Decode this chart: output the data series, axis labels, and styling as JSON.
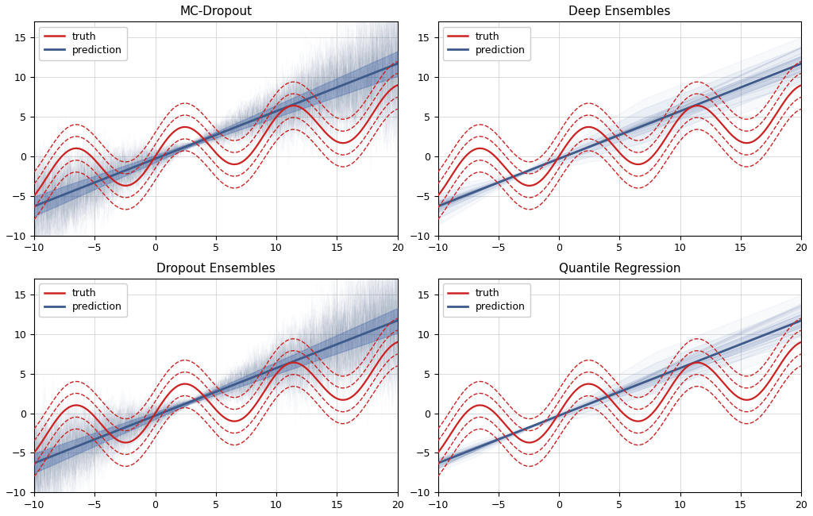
{
  "titles": [
    "MC-Dropout",
    "Deep Ensembles",
    "Dropout Ensembles",
    "Quantile Regression"
  ],
  "xlim": [
    -10,
    20
  ],
  "ylim": [
    -10,
    17
  ],
  "yticks": [
    -10,
    -5,
    0,
    5,
    10,
    15
  ],
  "xticks": [
    -10,
    -5,
    0,
    5,
    10,
    15,
    20
  ],
  "truth_color": "#cc2222",
  "pred_color": "#3d5a8a",
  "fill_color": "#4466aa",
  "seed": 42,
  "legend_loc": "upper left",
  "figsize": [
    10.24,
    6.5
  ],
  "dpi": 100,
  "truth_amplitude": 3.0,
  "truth_freq": 0.7,
  "truth_linear": 0.3,
  "pred_slope": 0.6,
  "pred_intercept": -0.3
}
